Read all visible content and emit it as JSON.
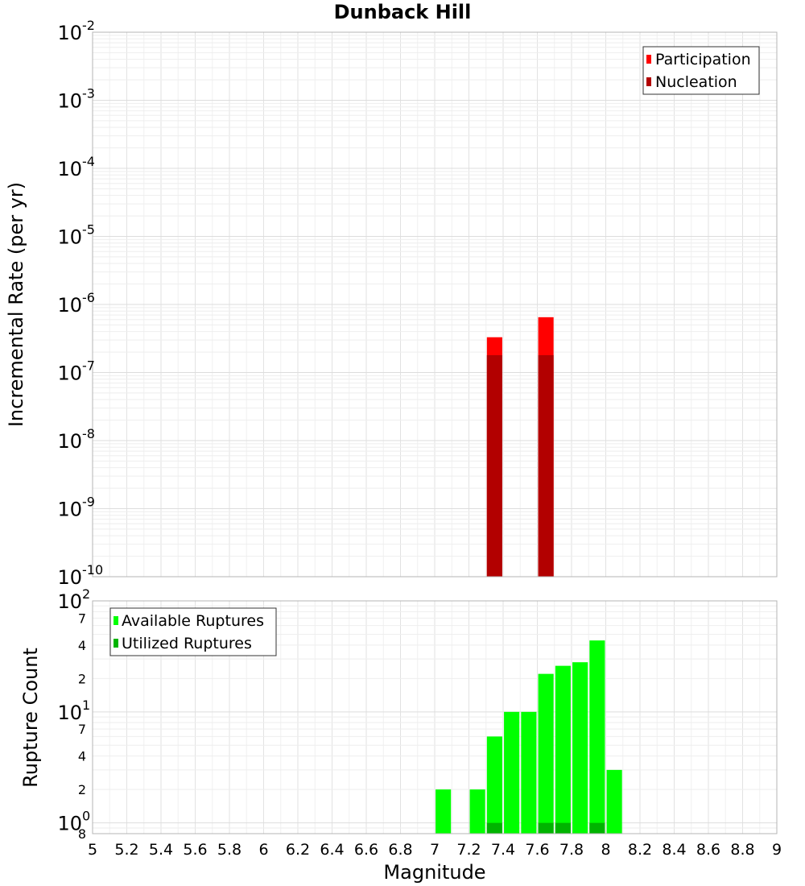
{
  "chart_data": [
    {
      "type": "bar",
      "title": "Dunback Hill",
      "xlabel": "",
      "ylabel": "Incremental Rate (per yr)",
      "y_scale": "log",
      "ylim": [
        1e-10,
        0.01
      ],
      "xlim": [
        5,
        9
      ],
      "y_tick_labels": [
        {
          "base": "10",
          "exp": "-2"
        },
        {
          "base": "10",
          "exp": "-3"
        },
        {
          "base": "10",
          "exp": "-4"
        },
        {
          "base": "10",
          "exp": "-5"
        },
        {
          "base": "10",
          "exp": "-6"
        },
        {
          "base": "10",
          "exp": "-7"
        },
        {
          "base": "10",
          "exp": "-8"
        },
        {
          "base": "10",
          "exp": "-9"
        },
        {
          "base": "10",
          "exp": "-10"
        }
      ],
      "grid": true,
      "legend_position": "top-right",
      "bar_width": 0.09,
      "series": [
        {
          "name": "Participation",
          "color": "#ff0000",
          "x": [
            7.35,
            7.65
          ],
          "values": [
            3.3e-07,
            6.5e-07
          ]
        },
        {
          "name": "Nucleation",
          "color": "#b20000",
          "x": [
            7.35,
            7.65
          ],
          "values": [
            1.8e-07,
            1.8e-07
          ]
        }
      ]
    },
    {
      "type": "bar",
      "title": "",
      "xlabel": "Magnitude",
      "ylabel": "Rupture Count",
      "y_scale": "log",
      "ylim": [
        0.8,
        100
      ],
      "xlim": [
        5,
        9
      ],
      "y_tick_labels": [
        {
          "base": "10",
          "exp": "2"
        },
        {
          "base": "",
          "exp": "7"
        },
        {
          "base": "",
          "exp": "4"
        },
        {
          "base": "",
          "exp": "2"
        },
        {
          "base": "10",
          "exp": "1"
        },
        {
          "base": "",
          "exp": "7"
        },
        {
          "base": "",
          "exp": "4"
        },
        {
          "base": "",
          "exp": "2"
        },
        {
          "base": "10",
          "exp": "0"
        },
        {
          "base": "",
          "exp": "8"
        }
      ],
      "x_tick_labels": [
        "5",
        "5.2",
        "5.4",
        "5.6",
        "5.8",
        "6",
        "6.2",
        "6.4",
        "6.6",
        "6.8",
        "7",
        "7.2",
        "7.4",
        "7.6",
        "7.8",
        "8",
        "8.2",
        "8.4",
        "8.6",
        "8.8",
        "9"
      ],
      "grid": true,
      "legend_position": "top-left",
      "bar_width": 0.09,
      "series": [
        {
          "name": "Available Ruptures",
          "color": "#00ff00",
          "x": [
            7.05,
            7.25,
            7.35,
            7.45,
            7.55,
            7.65,
            7.75,
            7.85,
            7.95,
            8.05
          ],
          "values": [
            2,
            2,
            6,
            10,
            10,
            22,
            26,
            28,
            44,
            3
          ]
        },
        {
          "name": "Utilized Ruptures",
          "color": "#00b400",
          "x": [
            7.35,
            7.65,
            7.75,
            7.95
          ],
          "values": [
            1,
            1,
            1,
            1
          ]
        }
      ]
    }
  ]
}
